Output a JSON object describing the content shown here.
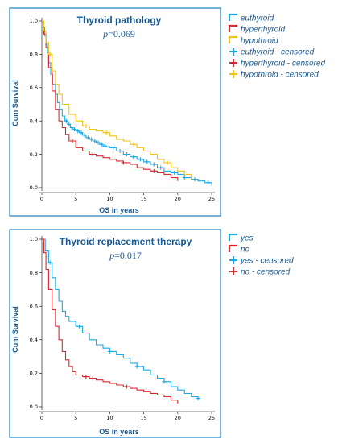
{
  "chart_data": [
    {
      "type": "line",
      "subtype": "kaplan-meier",
      "title": "Thyroid pathology",
      "p_value_label": "p",
      "p_value_text": "=0.069",
      "xlabel": "OS in years",
      "ylabel": "Cum Survival",
      "xlim": [
        0,
        25
      ],
      "ylim": [
        0,
        1.0
      ],
      "x_ticks": [
        0,
        5,
        10,
        15,
        20,
        25
      ],
      "y_ticks": [
        0.0,
        0.2,
        0.4,
        0.6,
        0.8,
        1.0
      ],
      "y_tick_labels": [
        "0.0",
        "0.2",
        "0.4",
        "0.6",
        "0.8",
        "1.0"
      ],
      "grid": false,
      "legend_position": "right",
      "legend": [
        {
          "label": "euthyroid",
          "color": "#1ea9e1",
          "marker": "step"
        },
        {
          "label": "hyperthyroid",
          "color": "#d62a30",
          "marker": "step"
        },
        {
          "label": "hypothroid",
          "color": "#f2c318",
          "marker": "step"
        },
        {
          "label": "euthyroid - censored",
          "color": "#1ea9e1",
          "marker": "plus"
        },
        {
          "label": "hyperthyroid - censored",
          "color": "#d62a30",
          "marker": "plus"
        },
        {
          "label": "hypothroid - censored",
          "color": "#f2c318",
          "marker": "plus"
        }
      ],
      "series": [
        {
          "name": "euthyroid",
          "color": "#1ea9e1",
          "x": [
            0,
            0.2,
            0.4,
            0.6,
            0.8,
            1.0,
            1.3,
            1.6,
            2.0,
            2.3,
            2.6,
            3.0,
            3.4,
            3.8,
            4.2,
            4.6,
            5.0,
            5.5,
            6.0,
            6.5,
            7.0,
            7.5,
            8.0,
            8.5,
            9.0,
            9.5,
            10.0,
            11.0,
            12.0,
            13.0,
            14.0,
            15.0,
            16.0,
            17.0,
            18.0,
            19.0,
            20.0,
            21.0,
            22.0,
            23.0,
            24.0,
            25.0
          ],
          "y": [
            1.0,
            0.96,
            0.91,
            0.86,
            0.81,
            0.75,
            0.68,
            0.62,
            0.56,
            0.51,
            0.47,
            0.43,
            0.4,
            0.38,
            0.36,
            0.35,
            0.34,
            0.33,
            0.315,
            0.3,
            0.29,
            0.28,
            0.27,
            0.26,
            0.25,
            0.245,
            0.24,
            0.22,
            0.2,
            0.185,
            0.17,
            0.155,
            0.14,
            0.12,
            0.1,
            0.09,
            0.08,
            0.06,
            0.05,
            0.04,
            0.03,
            0.015
          ],
          "censored": [
            3.6,
            4.0,
            4.4,
            4.8,
            5.3,
            5.8,
            6.3,
            6.8,
            7.3,
            7.8,
            8.3,
            8.8,
            9.3,
            10.5,
            11.5,
            12.5,
            13.5,
            14.5,
            15.5,
            16.5,
            17.5,
            19.5,
            21.0,
            22.5,
            24.5
          ]
        },
        {
          "name": "hyperthyroid",
          "color": "#d62a30",
          "x": [
            0,
            0.3,
            0.6,
            1.0,
            1.5,
            2.0,
            2.5,
            3.0,
            3.5,
            4.0,
            5.0,
            6.0,
            7.0,
            8.0,
            9.0,
            10.0,
            11.0,
            12.0,
            13.0,
            14.0,
            15.0,
            16.0,
            17.0,
            18.0,
            19.0,
            20.0
          ],
          "y": [
            1.0,
            0.92,
            0.84,
            0.72,
            0.58,
            0.47,
            0.4,
            0.36,
            0.32,
            0.28,
            0.24,
            0.22,
            0.2,
            0.19,
            0.18,
            0.17,
            0.16,
            0.15,
            0.14,
            0.12,
            0.11,
            0.1,
            0.09,
            0.08,
            0.06,
            0.04
          ],
          "censored": [
            4.5,
            7.5,
            12.0,
            16.5
          ]
        },
        {
          "name": "hypothroid",
          "color": "#f2c318",
          "x": [
            0,
            0.3,
            0.6,
            1.0,
            1.5,
            2.0,
            2.5,
            3.0,
            4.0,
            5.0,
            6.0,
            7.0,
            8.0,
            9.0,
            10.0,
            11.0,
            12.0,
            13.0,
            14.0,
            15.0,
            16.0,
            17.0,
            18.0,
            19.0,
            20.0,
            21.0,
            22.0
          ],
          "y": [
            1.0,
            0.94,
            0.87,
            0.8,
            0.7,
            0.62,
            0.56,
            0.5,
            0.44,
            0.4,
            0.37,
            0.35,
            0.34,
            0.33,
            0.31,
            0.29,
            0.28,
            0.26,
            0.24,
            0.22,
            0.2,
            0.17,
            0.15,
            0.12,
            0.1,
            0.08,
            0.05
          ],
          "censored": [
            1.2,
            6.5,
            9.5,
            13.5,
            18.5
          ]
        }
      ]
    },
    {
      "type": "line",
      "subtype": "kaplan-meier",
      "title": "Thyroid replacement therapy",
      "p_value_label": "p",
      "p_value_text": "=0.017",
      "xlabel": "OS in years",
      "ylabel": "Cum Survival",
      "xlim": [
        0,
        25
      ],
      "ylim": [
        0,
        1.0
      ],
      "x_ticks": [
        0,
        5,
        10,
        15,
        20,
        25
      ],
      "y_ticks": [
        0.0,
        0.2,
        0.4,
        0.6,
        0.8,
        1.0
      ],
      "y_tick_labels": [
        "0.0",
        "0.2",
        "0.4",
        "0.6",
        "0.8",
        "1.0"
      ],
      "grid": false,
      "legend_position": "right",
      "legend": [
        {
          "label": "yes",
          "color": "#1ea9e1",
          "marker": "step"
        },
        {
          "label": "no",
          "color": "#d62a30",
          "marker": "step"
        },
        {
          "label": "yes - censored",
          "color": "#1ea9e1",
          "marker": "plus"
        },
        {
          "label": "no - censored",
          "color": "#d62a30",
          "marker": "plus"
        }
      ],
      "series": [
        {
          "name": "yes",
          "color": "#1ea9e1",
          "x": [
            0,
            0.5,
            1.0,
            1.5,
            2.0,
            2.5,
            3.0,
            3.5,
            4.0,
            5.0,
            6.0,
            7.0,
            8.0,
            9.0,
            10.0,
            11.0,
            12.0,
            13.0,
            14.0,
            15.0,
            16.0,
            17.0,
            18.0,
            19.0,
            20.0,
            21.0,
            22.0,
            23.0
          ],
          "y": [
            1.0,
            0.93,
            0.86,
            0.77,
            0.7,
            0.63,
            0.57,
            0.54,
            0.51,
            0.48,
            0.44,
            0.4,
            0.37,
            0.35,
            0.33,
            0.31,
            0.29,
            0.26,
            0.24,
            0.22,
            0.19,
            0.17,
            0.15,
            0.12,
            0.1,
            0.08,
            0.06,
            0.05
          ],
          "censored": [
            1.2,
            5.5,
            10.0,
            14.0,
            18.0,
            23.0
          ]
        },
        {
          "name": "no",
          "color": "#d62a30",
          "x": [
            0,
            0.3,
            0.6,
            1.0,
            1.5,
            2.0,
            2.5,
            3.0,
            3.5,
            4.0,
            4.5,
            5.0,
            6.0,
            7.0,
            8.0,
            9.0,
            10.0,
            11.0,
            12.0,
            13.0,
            14.0,
            15.0,
            16.0,
            17.0,
            18.0,
            19.0,
            20.0
          ],
          "y": [
            1.0,
            0.92,
            0.82,
            0.7,
            0.58,
            0.48,
            0.4,
            0.33,
            0.28,
            0.24,
            0.21,
            0.19,
            0.18,
            0.17,
            0.16,
            0.15,
            0.14,
            0.13,
            0.12,
            0.11,
            0.1,
            0.09,
            0.08,
            0.07,
            0.06,
            0.04,
            0.02
          ],
          "censored": [
            6.5,
            7.5,
            12.5
          ]
        }
      ]
    }
  ]
}
